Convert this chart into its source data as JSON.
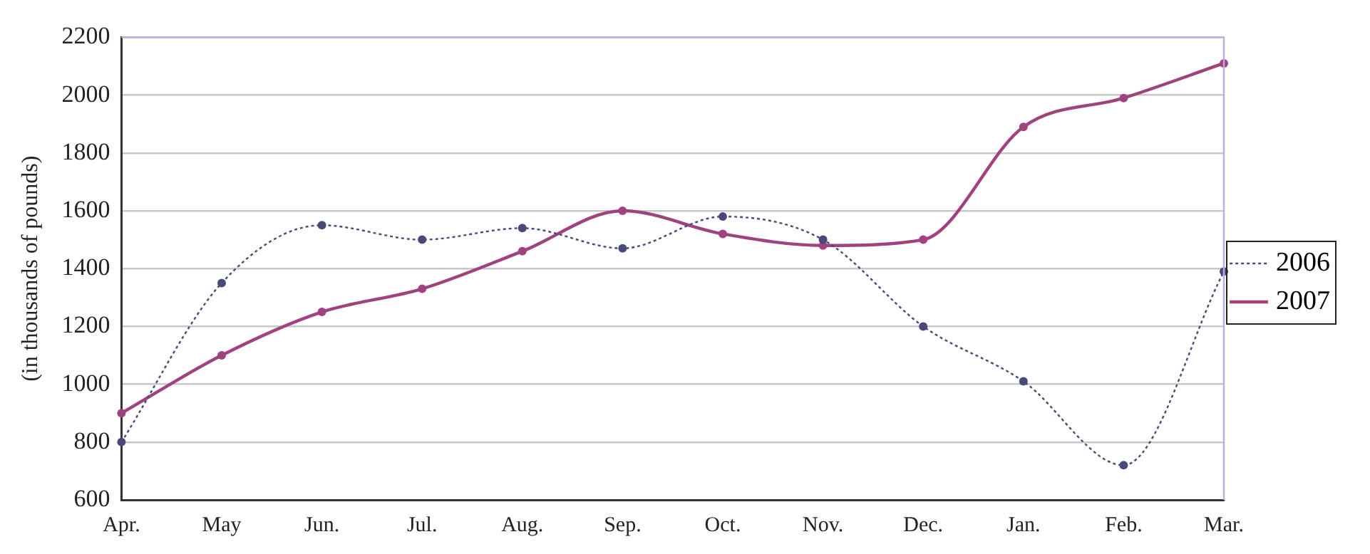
{
  "chart_data": {
    "type": "line",
    "ylabel": "(in thousands of pounds)",
    "categories": [
      "Apr.",
      "May",
      "Jun.",
      "Jul.",
      "Aug.",
      "Sep.",
      "Oct.",
      "Nov.",
      "Dec.",
      "Jan.",
      "Feb.",
      "Mar."
    ],
    "series": [
      {
        "name": "2006",
        "color": "#4a4a7a",
        "line_style": "dotted",
        "values": [
          800,
          1350,
          1550,
          1500,
          1540,
          1470,
          1580,
          1500,
          1200,
          1010,
          720,
          1390
        ]
      },
      {
        "name": "2007",
        "color": "#a0427e",
        "line_style": "solid",
        "values": [
          900,
          1100,
          1250,
          1330,
          1460,
          1600,
          1520,
          1480,
          1500,
          1890,
          1990,
          2110
        ]
      }
    ],
    "ylim": [
      600,
      2200
    ],
    "yticks": [
      600,
      800,
      1000,
      1200,
      1400,
      1600,
      1800,
      2000,
      2200
    ],
    "grid": "y",
    "legend": "right",
    "marker": "circle"
  }
}
